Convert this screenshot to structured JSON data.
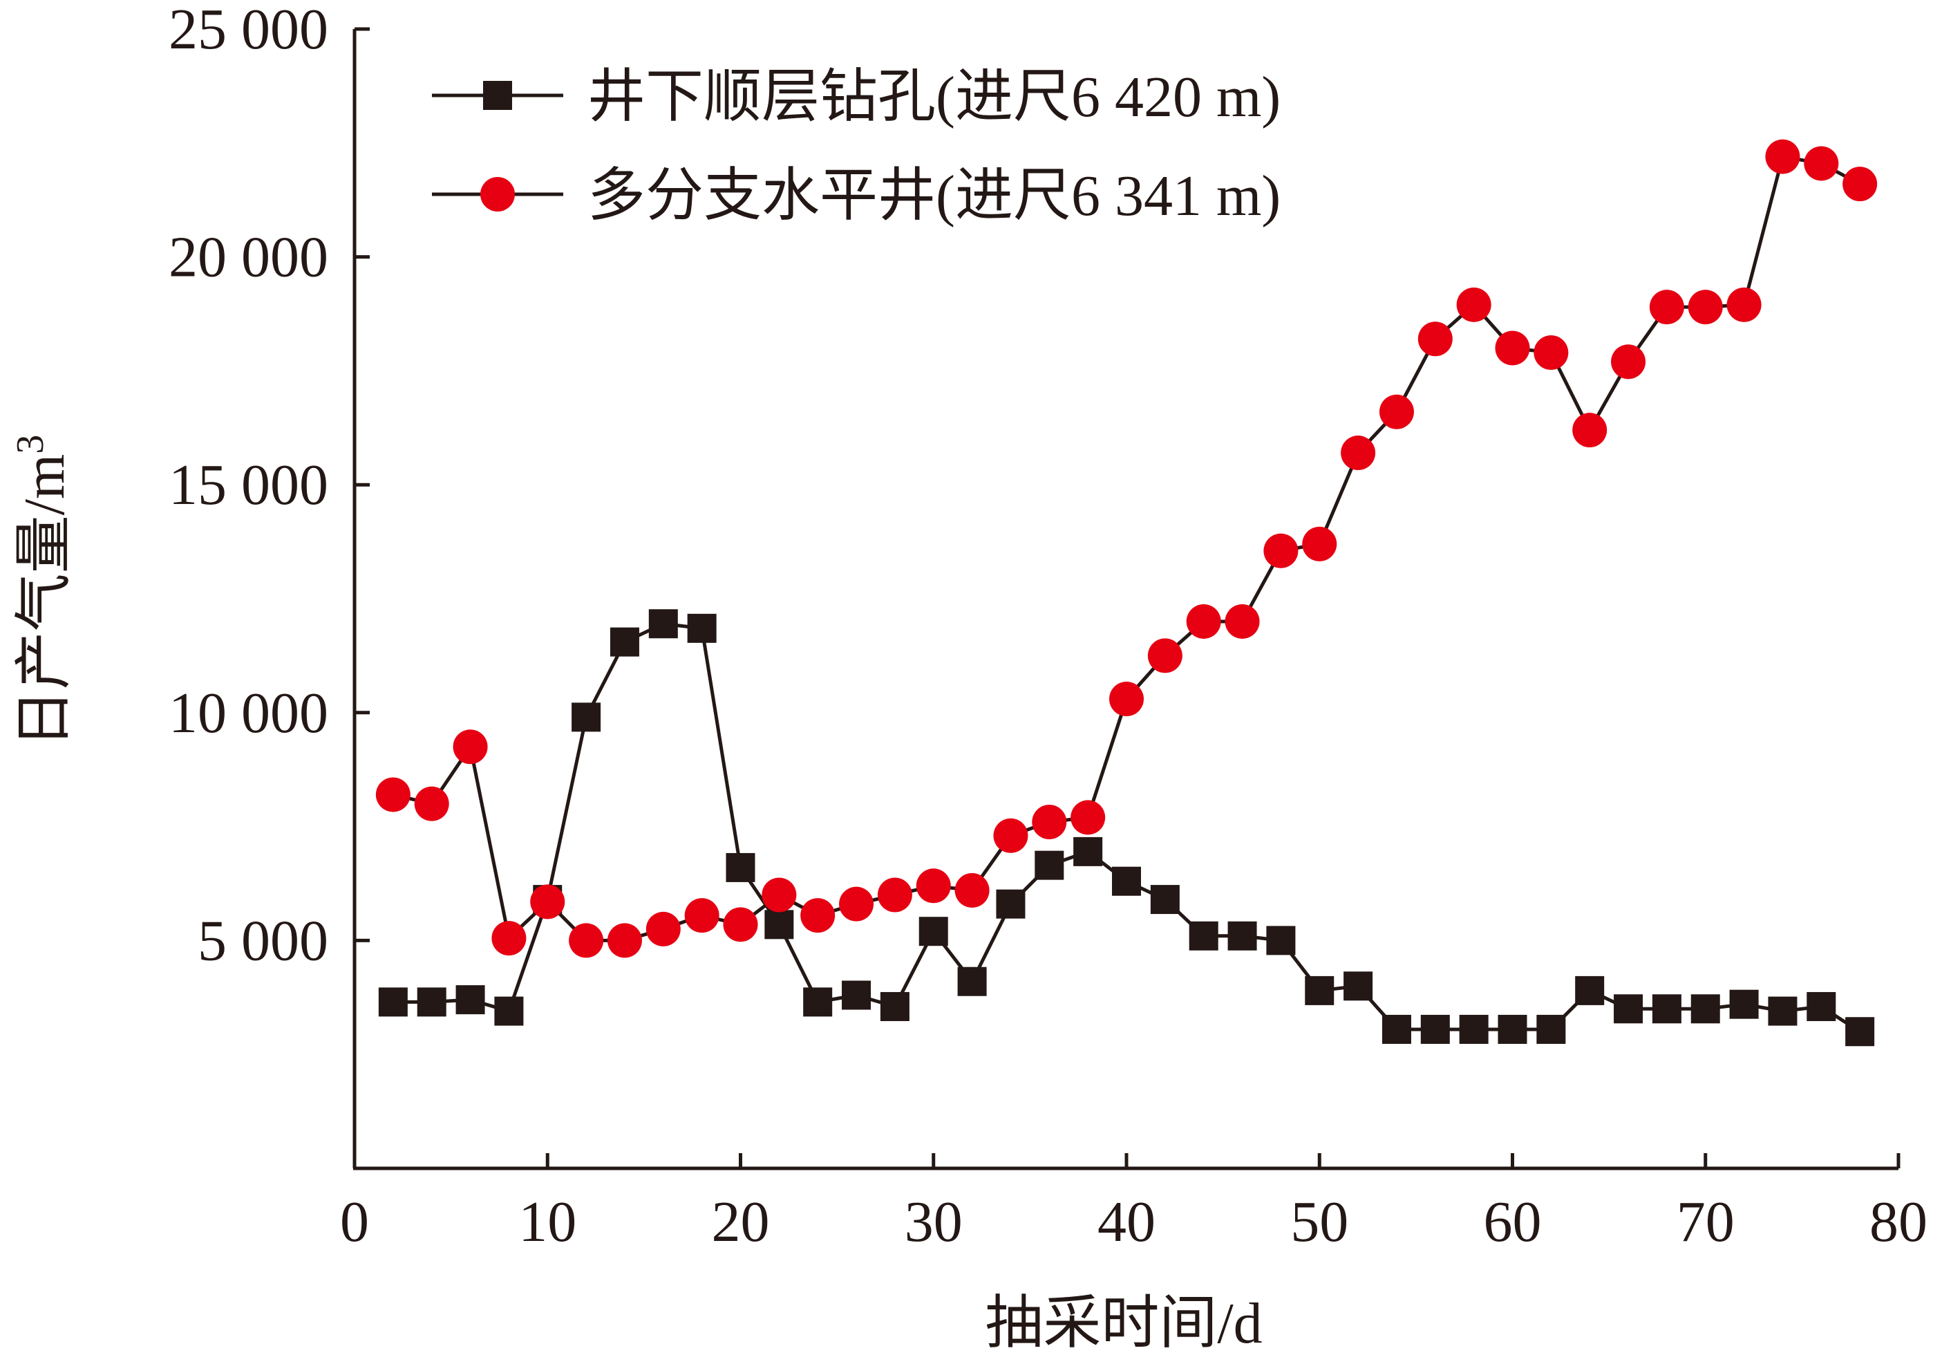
{
  "chart_data": {
    "type": "line",
    "xlabel": "抽采时间/d",
    "ylabel": "日产气量/m",
    "ylabel_sup": "3",
    "xlim": [
      0,
      80
    ],
    "ylim": [
      0,
      25000
    ],
    "x_ticks": [
      0,
      10,
      20,
      30,
      40,
      50,
      60,
      70,
      80
    ],
    "x_tick_labels": [
      "0",
      "10",
      "20",
      "30",
      "40",
      "50",
      "60",
      "70",
      "80"
    ],
    "y_ticks": [
      5000,
      10000,
      15000,
      20000,
      25000
    ],
    "y_tick_labels": [
      "5 000",
      "10 000",
      "15 000",
      "20 000",
      "25 000"
    ],
    "grid": false,
    "legend_position": "top-left",
    "series": [
      {
        "name": "井下顺层钻孔(进尺6 420 m)",
        "marker": "square",
        "color": "#231815",
        "x": [
          2,
          4,
          6,
          8,
          10,
          12,
          14,
          16,
          18,
          20,
          22,
          24,
          26,
          28,
          30,
          32,
          34,
          36,
          38,
          40,
          42,
          44,
          46,
          48,
          50,
          52,
          54,
          56,
          58,
          60,
          62,
          64,
          66,
          68,
          70,
          72,
          74,
          76,
          78
        ],
        "values": [
          3650,
          3650,
          3700,
          3450,
          5900,
          9900,
          11550,
          11950,
          11850,
          6600,
          5350,
          3650,
          3800,
          3550,
          5200,
          4100,
          5800,
          6650,
          6950,
          6300,
          5900,
          5100,
          5100,
          5000,
          3900,
          4000,
          3050,
          3050,
          3050,
          3050,
          3050,
          3900,
          3500,
          3500,
          3500,
          3600,
          3450,
          3550,
          3000
        ]
      },
      {
        "name": "多分支水平井(进尺6 341 m)",
        "marker": "circle",
        "color": "#e60012",
        "x": [
          2,
          4,
          6,
          8,
          10,
          12,
          14,
          16,
          18,
          20,
          22,
          24,
          26,
          28,
          30,
          32,
          34,
          36,
          38,
          40,
          42,
          44,
          46,
          48,
          50,
          52,
          54,
          56,
          58,
          60,
          62,
          64,
          66,
          68,
          70,
          72,
          74,
          76,
          78
        ],
        "values": [
          8200,
          8000,
          9250,
          5050,
          5850,
          5000,
          5000,
          5250,
          5550,
          5350,
          6000,
          5550,
          5800,
          6000,
          6200,
          6100,
          7300,
          7600,
          7700,
          10300,
          11250,
          12000,
          12000,
          13550,
          13700,
          15700,
          16600,
          18200,
          18950,
          18000,
          17900,
          16200,
          17700,
          18900,
          18900,
          18950,
          22200,
          22050,
          21600
        ]
      }
    ]
  }
}
